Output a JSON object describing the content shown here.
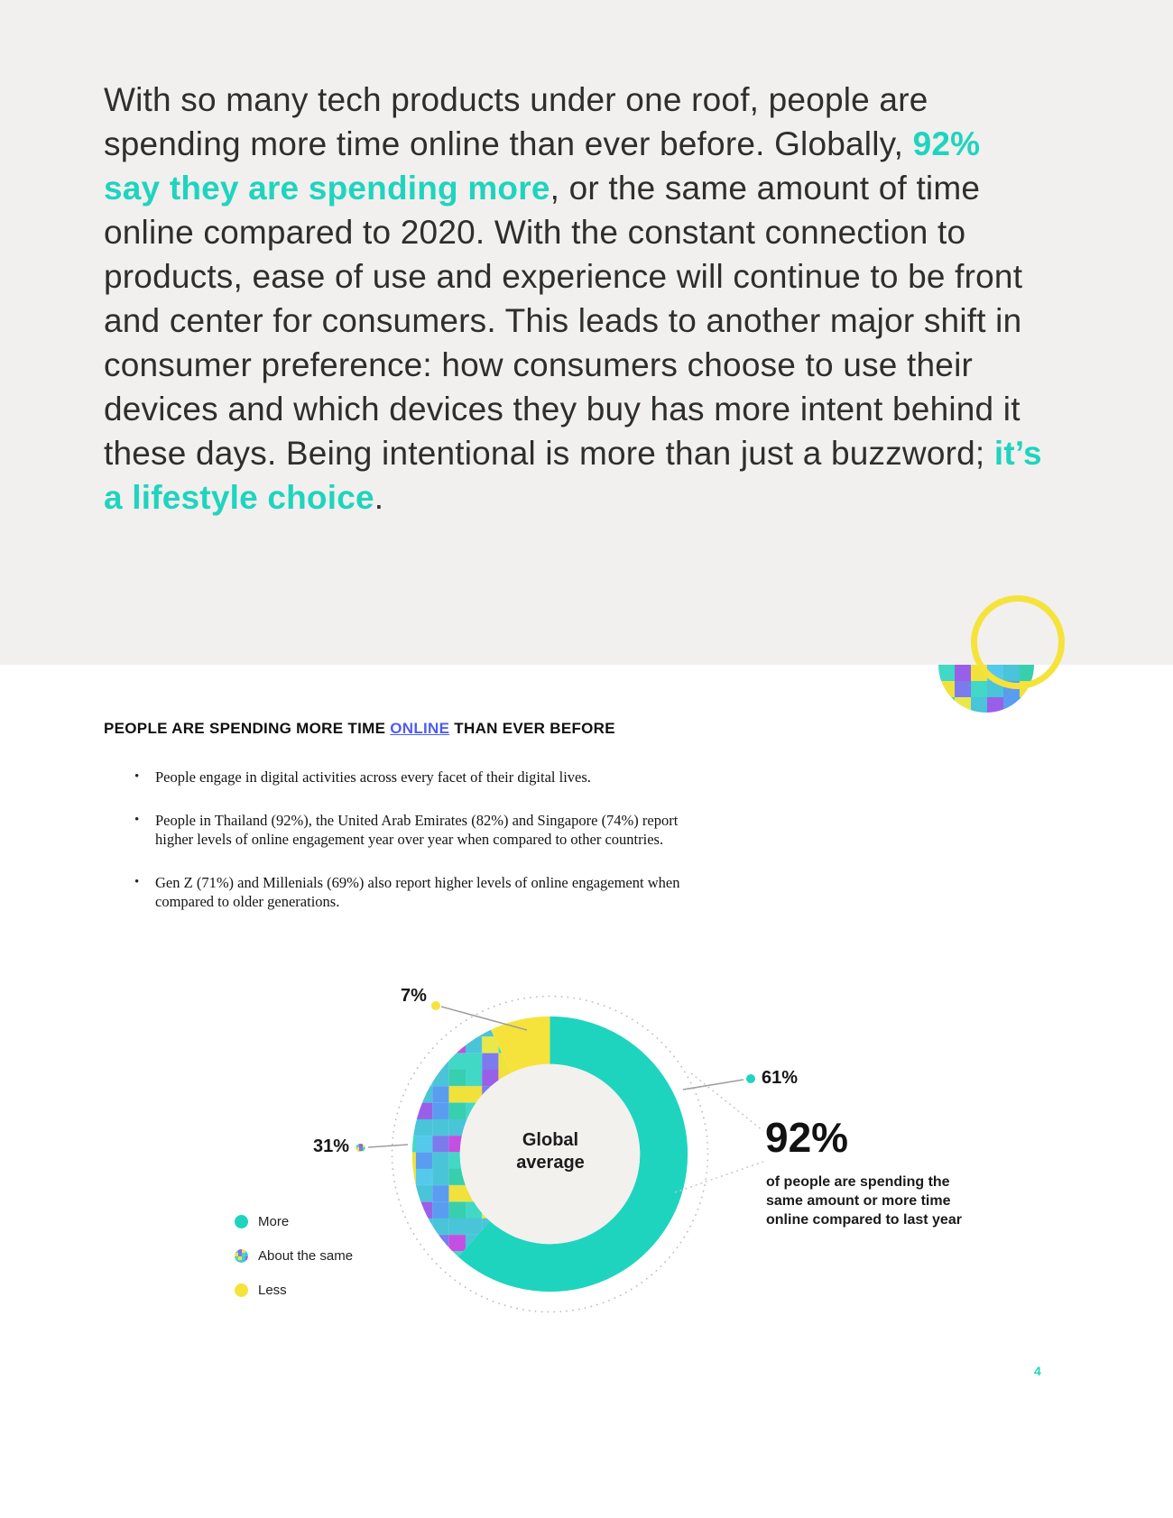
{
  "accent_color": "#1fd4bf",
  "hero": {
    "parts": [
      {
        "t": "With so many tech products under one roof, people are spending more time online than ever before. Globally, "
      },
      {
        "t": "92% say they are spending more",
        "accent": true
      },
      {
        "t": ", or the same amount of time online compared to 2020. With the constant connection to products, ease of use and experience will continue to be front and center for consumers. This leads to another major shift in consumer preference: how consumers choose to use their devices and which devices they buy has more intent behind it these days. Being intentional is more than just a buzzword; "
      },
      {
        "t": "it’s a lifestyle choice",
        "accent": true
      },
      {
        "t": "."
      }
    ]
  },
  "section": {
    "heading": {
      "pre": "PEOPLE ARE SPENDING MORE TIME ",
      "link": "ONLINE",
      "post": " THAN EVER BEFORE"
    },
    "bullets": [
      "People engage in digital activities across every facet of their digital lives.",
      "People in Thailand (92%), the United Arab Emirates (82%) and Singapore (74%) report higher levels of online engagement year over year when compared to other countries.",
      "Gen Z (71%) and Millenials (69%) also report higher levels of online engagement when compared to older generations."
    ]
  },
  "chart_data": {
    "type": "pie",
    "donut": true,
    "center_label": "Global average",
    "categories": [
      "More",
      "About the same",
      "Less"
    ],
    "values": [
      61,
      31,
      7
    ],
    "value_labels": [
      "61%",
      "31%",
      "7%"
    ],
    "colors": [
      "#1fd4bf",
      "pixel-mosaic",
      "#f5e33c"
    ],
    "mosaic_palette": [
      "#41d8c6",
      "#55c9ec",
      "#7b7bee",
      "#c44fe0",
      "#f0e23a",
      "#37cfae",
      "#5a9df0",
      "#9a5fe8",
      "#49c4d8",
      "#e8e84a"
    ],
    "legend": [
      "More",
      "About the same",
      "Less"
    ],
    "legend_position": "bottom-left",
    "callout": {
      "value": "92%",
      "text": "of people are spending the same amount or more time online compared to last year"
    }
  },
  "page_number": "4"
}
